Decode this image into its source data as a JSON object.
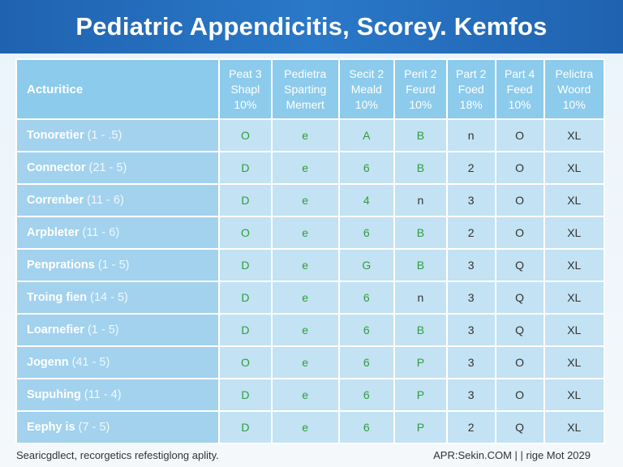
{
  "title": "Pediatric Appendicitis, Scorey. Kemfos",
  "table": {
    "headers": [
      {
        "l1": "Acturitice"
      },
      {
        "l1": "Peat 3",
        "l2": "Shapl",
        "l3": "10%"
      },
      {
        "l1": "Pedietra",
        "l2": "Sparting",
        "l3": "Memert"
      },
      {
        "l1": "Secit 2",
        "l2": "Meald",
        "l3": "10%"
      },
      {
        "l1": "Perit 2",
        "l2": "Feurd",
        "l3": "10%"
      },
      {
        "l1": "Part 2",
        "l2": "Foed",
        "l3": "18%"
      },
      {
        "l1": "Part 4",
        "l2": "Feed",
        "l3": "10%"
      },
      {
        "l1": "Pelictra",
        "l2": "Woord",
        "l3": "10%"
      }
    ],
    "rows": [
      {
        "name": "Tonoretier",
        "range": "(1 - .5)",
        "cells": [
          "O",
          "e",
          "A",
          "B",
          "n",
          "O",
          "XL"
        ]
      },
      {
        "name": "Connector",
        "range": "(21 - 5)",
        "cells": [
          "D",
          "e",
          "6",
          "B",
          "2",
          "O",
          "XL"
        ]
      },
      {
        "name": "Correnber",
        "range": "(11 - 6)",
        "cells": [
          "D",
          "e",
          "4",
          "n",
          "3",
          "O",
          "XL"
        ]
      },
      {
        "name": "Arpbleter",
        "range": "(11 - 6)",
        "cells": [
          "O",
          "e",
          "6",
          "B",
          "2",
          "O",
          "XL"
        ]
      },
      {
        "name": "Penprations",
        "range": "(1 - 5)",
        "cells": [
          "D",
          "e",
          "G",
          "B",
          "3",
          "Q",
          "XL"
        ]
      },
      {
        "name": "Troing fien",
        "range": "(14 - 5)",
        "cells": [
          "D",
          "e",
          "6",
          "n",
          "3",
          "Q",
          "XL"
        ]
      },
      {
        "name": "Loarnefier",
        "range": "(1 - 5)",
        "cells": [
          "D",
          "e",
          "6",
          "B",
          "3",
          "Q",
          "XL"
        ]
      },
      {
        "name": "Jogenn",
        "range": "(41 - 5)",
        "cells": [
          "O",
          "e",
          "6",
          "P",
          "3",
          "O",
          "XL"
        ]
      },
      {
        "name": "Supuhing",
        "range": "(11 - 4)",
        "cells": [
          "D",
          "e",
          "6",
          "P",
          "3",
          "O",
          "XL"
        ]
      },
      {
        "name": "Eephy is",
        "range": "(7 - 5)",
        "cells": [
          "D",
          "e",
          "6",
          "P",
          "2",
          "Q",
          "XL"
        ]
      }
    ]
  },
  "footer": {
    "left": "Searicgdlect, recorgetics refestiglong aplity.",
    "right": "APR:Sekin.COM | | rige Mot 2029"
  },
  "colors": {
    "title_bg": "#1f63b0",
    "header_bg": "#8ccbec",
    "label_bg": "#a2d2ee",
    "cell_bg": "#c3e2f3",
    "green_text": "#2e9e3c"
  }
}
